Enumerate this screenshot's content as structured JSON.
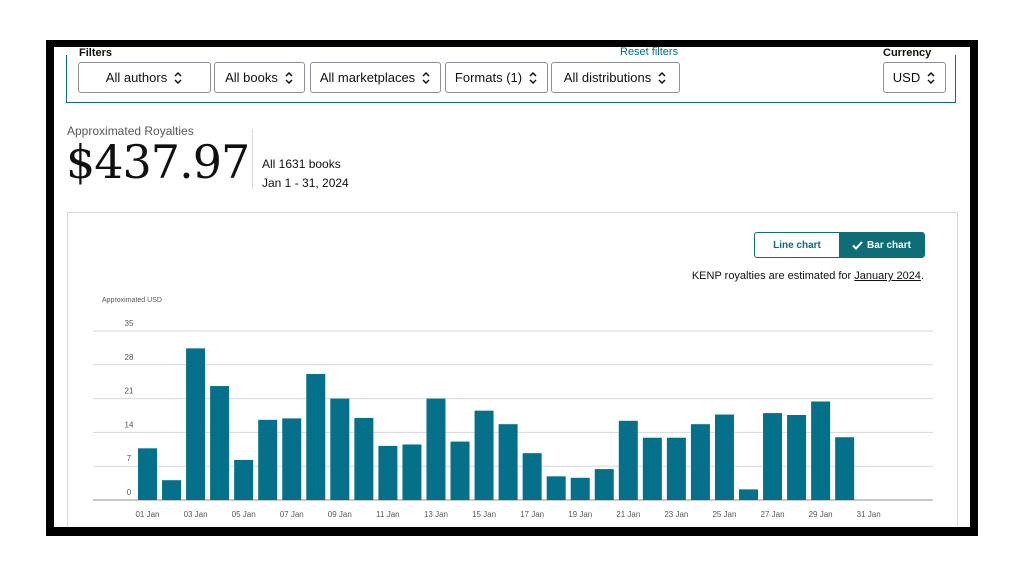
{
  "filters": {
    "title": "Filters",
    "reset_label": "Reset filters",
    "authors": "All authors",
    "books": "All books",
    "marketplaces": "All marketplaces",
    "formats": "Formats (1)",
    "distributions": "All distributions"
  },
  "currency": {
    "title": "Currency",
    "value": "USD"
  },
  "summary": {
    "label": "Approximated Royalties",
    "amount": "$437.97",
    "books": "All 1631 books",
    "date_range": "Jan 1 - 31, 2024"
  },
  "chart_toggle": {
    "line_label": "Line chart",
    "bar_label": "Bar chart",
    "selected": "Bar chart"
  },
  "kenp_note": {
    "text": "KENP royalties are estimated for ",
    "link": "January 2024",
    "suffix": "."
  },
  "colors": {
    "accent": "#0e6d77",
    "bar": "#05708a"
  },
  "chart_data": {
    "type": "bar",
    "ylabel": "Approximated USD",
    "ylim": [
      0,
      35
    ],
    "yticks": [
      0,
      7,
      14,
      21,
      28,
      35
    ],
    "grid": true,
    "categories": [
      "01 Jan",
      "02 Jan",
      "03 Jan",
      "04 Jan",
      "05 Jan",
      "06 Jan",
      "07 Jan",
      "08 Jan",
      "09 Jan",
      "10 Jan",
      "11 Jan",
      "12 Jan",
      "13 Jan",
      "14 Jan",
      "15 Jan",
      "16 Jan",
      "17 Jan",
      "18 Jan",
      "19 Jan",
      "20 Jan",
      "21 Jan",
      "22 Jan",
      "23 Jan",
      "24 Jan",
      "25 Jan",
      "26 Jan",
      "27 Jan",
      "28 Jan",
      "29 Jan",
      "30 Jan",
      "31 Jan"
    ],
    "tick_labels": [
      "01 Jan",
      "03 Jan",
      "05 Jan",
      "07 Jan",
      "09 Jan",
      "11 Jan",
      "13 Jan",
      "15 Jan",
      "17 Jan",
      "19 Jan",
      "21 Jan",
      "23 Jan",
      "25 Jan",
      "27 Jan",
      "29 Jan",
      "31 Jan"
    ],
    "values": [
      10.7,
      4.1,
      31.4,
      23.6,
      8.3,
      16.6,
      16.9,
      26.1,
      21.0,
      17.0,
      11.2,
      11.5,
      21.0,
      12.1,
      18.5,
      15.7,
      9.7,
      4.9,
      4.6,
      6.4,
      16.4,
      12.9,
      12.9,
      15.7,
      17.7,
      2.2,
      18.0,
      17.6,
      20.4,
      13.0,
      0
    ]
  }
}
